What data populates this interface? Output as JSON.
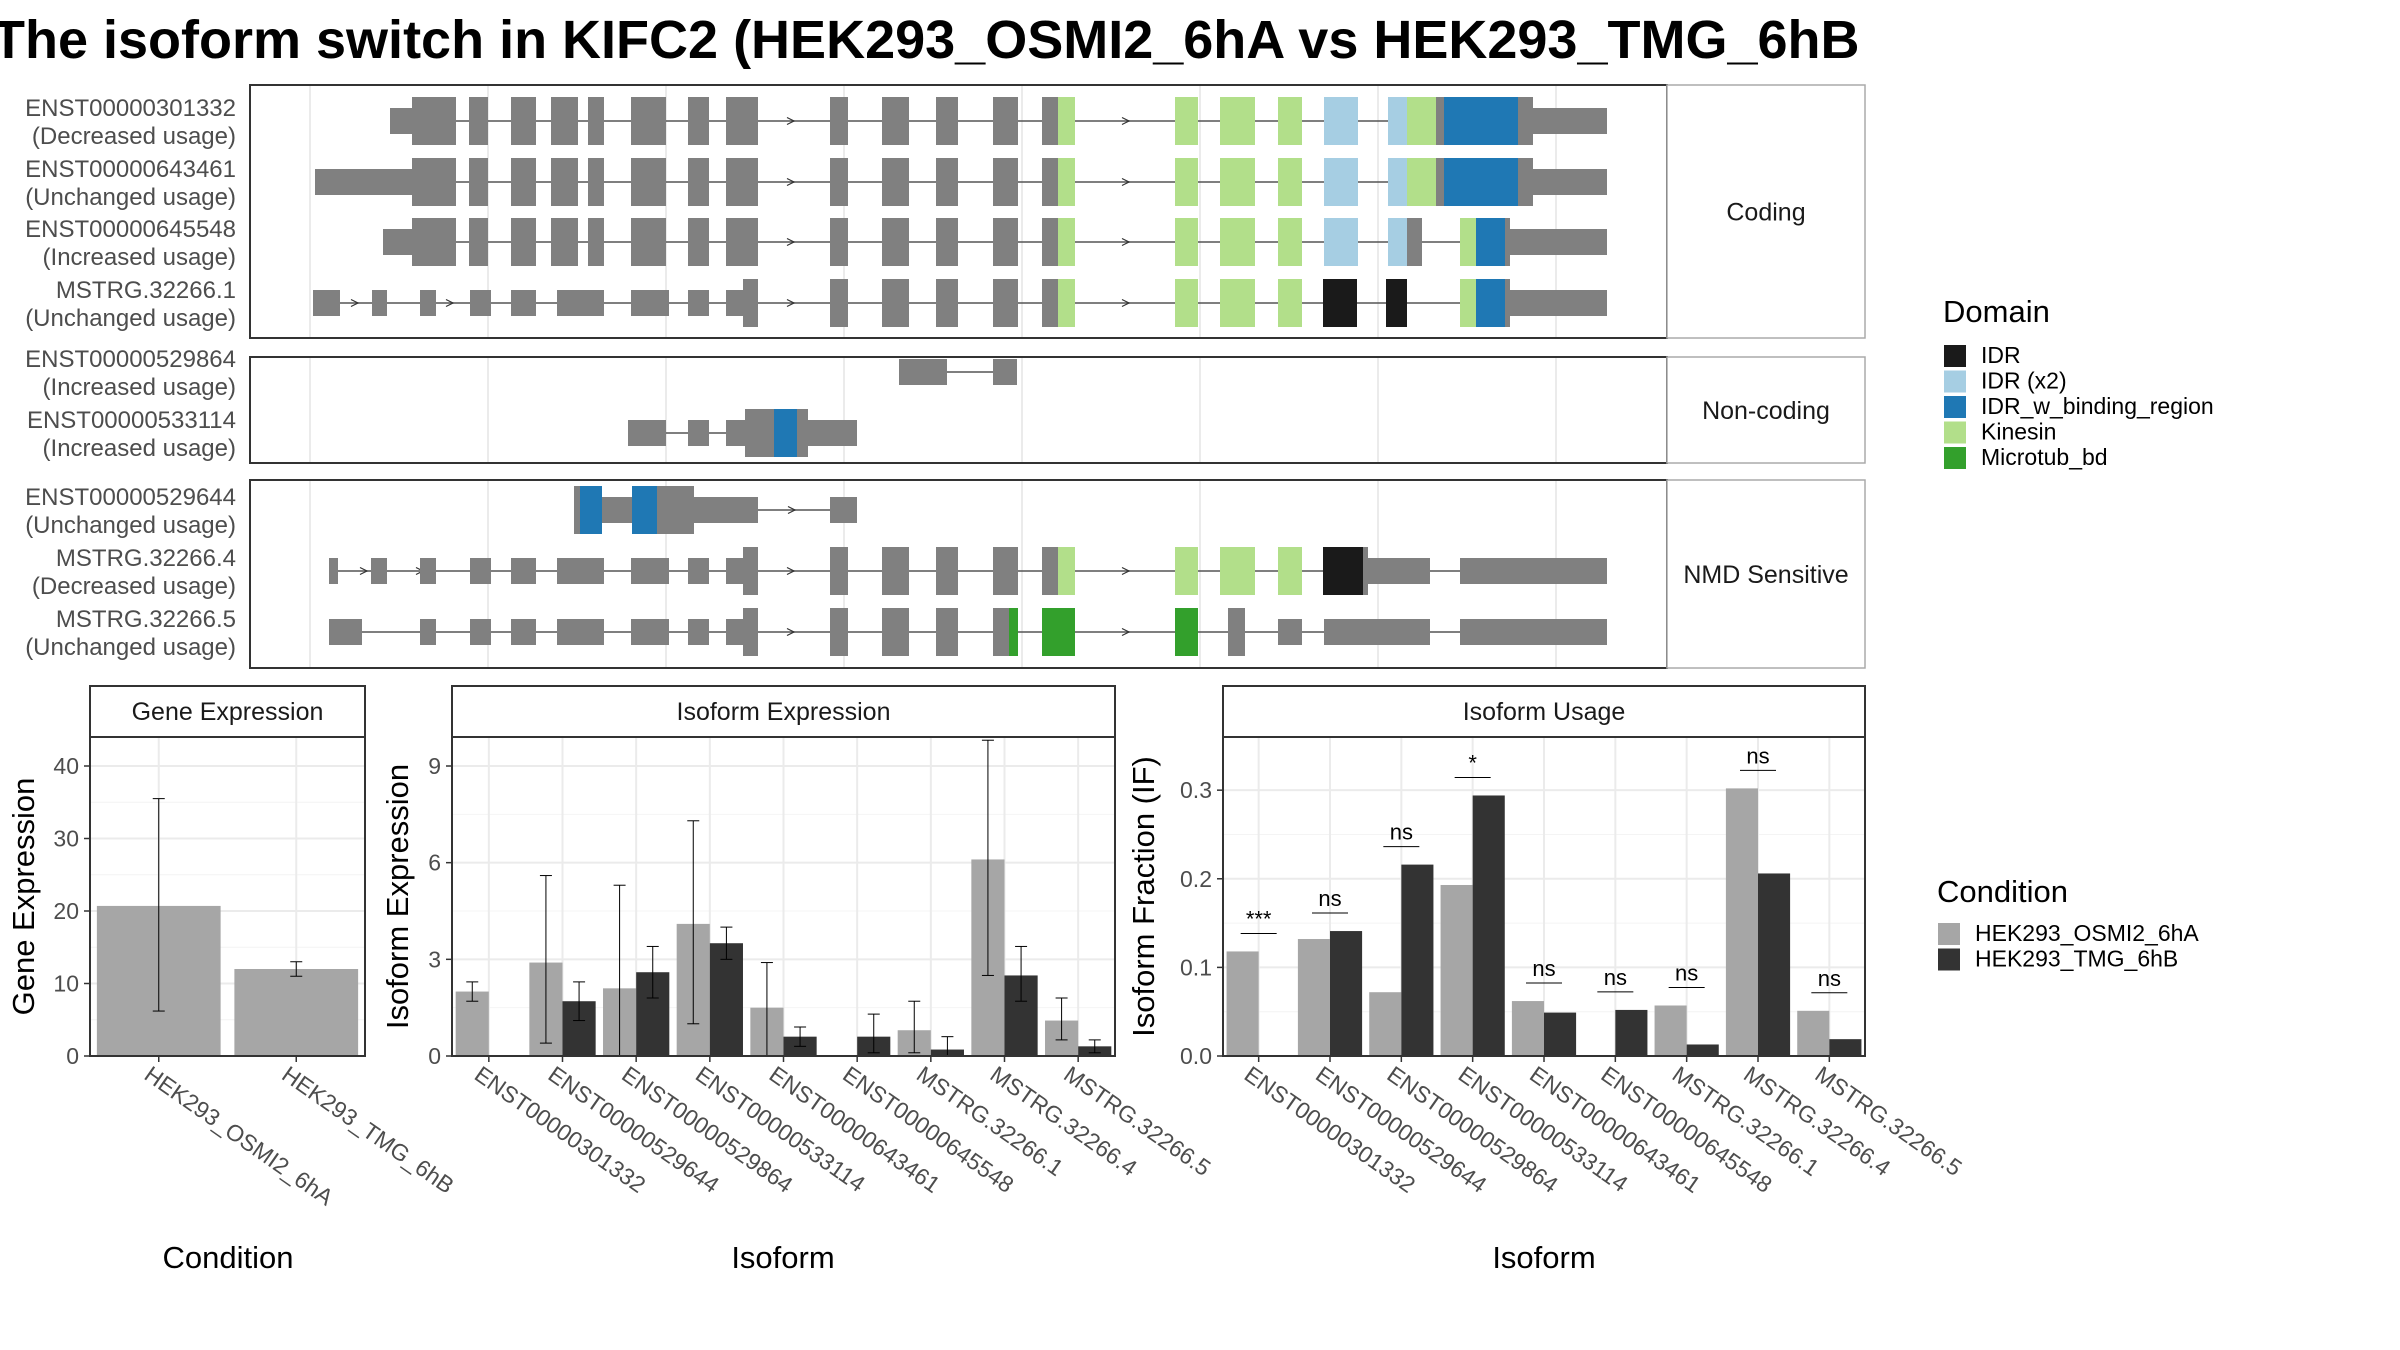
{
  "title": "The isoform switch in KIFC2 (HEK293_OSMI2_6hA vs HEK293_TMG_6hB",
  "colors": {
    "gray_exon": "#808080",
    "IDR": "#1a1a1a",
    "IDR (x2)": "#a6cee3",
    "IDR_w_binding_region": "#1f78b4",
    "Kinesin": "#b2df8a",
    "Microtub_bd": "#33a02c",
    "cond_a": "#a6a6a6",
    "cond_b": "#333333",
    "grid": "#ebebeb",
    "panel_border": "#333333",
    "strip_border": "#aaaaaa"
  },
  "transcript_panels": [
    {
      "label": "Coding",
      "rows": [
        {
          "id": "ENST00000301332",
          "note": "(Decreased usage)"
        },
        {
          "id": "ENST00000643461",
          "note": "(Unchanged usage)"
        },
        {
          "id": "ENST00000645548",
          "note": "(Increased usage)"
        },
        {
          "id": "MSTRG.32266.1",
          "note": "(Unchanged usage)"
        }
      ]
    },
    {
      "label": "Non-coding",
      "rows": [
        {
          "id": "ENST00000529864",
          "note": "(Increased usage)"
        },
        {
          "id": "ENST00000533114",
          "note": "(Increased usage)"
        }
      ]
    },
    {
      "label": "NMD Sensitive",
      "rows": [
        {
          "id": "ENST00000529644",
          "note": "(Unchanged usage)"
        },
        {
          "id": "MSTRG.32266.4",
          "note": "(Decreased usage)"
        },
        {
          "id": "MSTRG.32266.5",
          "note": "(Unchanged usage)"
        }
      ]
    }
  ],
  "domain_legend": {
    "title": "Domain",
    "items": [
      {
        "label": "IDR",
        "color": "#1a1a1a"
      },
      {
        "label": "IDR (x2)",
        "color": "#a6cee3"
      },
      {
        "label": "IDR_w_binding_region",
        "color": "#1f78b4"
      },
      {
        "label": "Kinesin",
        "color": "#b2df8a"
      },
      {
        "label": "Microtub_bd",
        "color": "#33a02c"
      }
    ]
  },
  "condition_legend": {
    "title": "Condition",
    "items": [
      {
        "label": "HEK293_OSMI2_6hA",
        "color": "#a6a6a6"
      },
      {
        "label": "HEK293_TMG_6hB",
        "color": "#333333"
      }
    ]
  },
  "chart_data": [
    {
      "type": "bar",
      "title": "Gene Expression",
      "xlabel": "Condition",
      "ylabel": "Gene Expression",
      "ylim": [
        0,
        44
      ],
      "yticks": [
        0,
        10,
        20,
        30,
        40
      ],
      "categories": [
        "HEK293_OSMI2_6hA",
        "HEK293_TMG_6hB"
      ],
      "values": [
        20.7,
        12.0
      ],
      "err_low": [
        6.2,
        11.0
      ],
      "err_high": [
        35.5,
        13.0
      ],
      "grid": true
    },
    {
      "type": "bar",
      "title": "Isoform Expression",
      "xlabel": "Isoform",
      "ylabel": "Isoform Expression",
      "ylim": [
        0,
        9.9
      ],
      "yticks": [
        0,
        3,
        6,
        9
      ],
      "categories": [
        "ENST00000301332",
        "ENST00000529644",
        "ENST00000529864",
        "ENST00000533114",
        "ENST00000643461",
        "ENST00000645548",
        "MSTRG.32266.1",
        "MSTRG.32266.4",
        "MSTRG.32266.5"
      ],
      "series": [
        {
          "name": "HEK293_OSMI2_6hA",
          "values": [
            2.0,
            2.9,
            2.1,
            4.1,
            1.5,
            0.0,
            0.8,
            6.1,
            1.1
          ],
          "err_low": [
            1.7,
            0.4,
            0.0,
            1.0,
            0.0,
            0.0,
            0.1,
            2.5,
            0.5
          ],
          "err_high": [
            2.3,
            5.6,
            5.3,
            7.3,
            2.9,
            0.0,
            1.7,
            9.8,
            1.8
          ]
        },
        {
          "name": "HEK293_TMG_6hB",
          "values": [
            0.0,
            1.7,
            2.6,
            3.5,
            0.6,
            0.6,
            0.2,
            2.5,
            0.3
          ],
          "err_low": [
            0.0,
            1.1,
            1.8,
            3.0,
            0.3,
            0.1,
            0.0,
            1.7,
            0.1
          ],
          "err_high": [
            0.0,
            2.3,
            3.4,
            4.0,
            0.9,
            1.3,
            0.6,
            3.4,
            0.5
          ]
        }
      ],
      "grid": true
    },
    {
      "type": "bar",
      "title": "Isoform Usage",
      "xlabel": "Isoform",
      "ylabel": "Isoform Fraction (IF)",
      "ylim": [
        0,
        0.36
      ],
      "yticks": [
        0.0,
        0.1,
        0.2,
        0.3
      ],
      "ytick_labels": [
        "0.0",
        "0.1",
        "0.2",
        "0.3"
      ],
      "categories": [
        "ENST00000301332",
        "ENST00000529644",
        "ENST00000529864",
        "ENST00000533114",
        "ENST00000643461",
        "ENST00000645548",
        "MSTRG.32266.1",
        "MSTRG.32266.4",
        "MSTRG.32266.5"
      ],
      "series": [
        {
          "name": "HEK293_OSMI2_6hA",
          "values": [
            0.118,
            0.132,
            0.072,
            0.193,
            0.062,
            0.0,
            0.057,
            0.302,
            0.051
          ]
        },
        {
          "name": "HEK293_TMG_6hB",
          "values": [
            0.0,
            0.141,
            0.216,
            0.294,
            0.049,
            0.052,
            0.013,
            0.206,
            0.019
          ]
        }
      ],
      "significance": [
        "***",
        "ns",
        "ns",
        "*",
        "ns",
        "ns",
        "ns",
        "ns",
        "ns"
      ],
      "grid": true
    }
  ]
}
